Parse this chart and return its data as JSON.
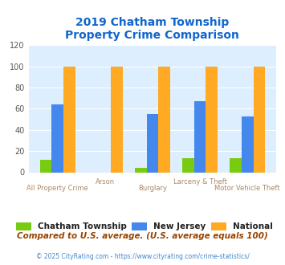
{
  "title": "2019 Chatham Township\nProperty Crime Comparison",
  "categories": [
    "All Property Crime",
    "Arson",
    "Burglary",
    "Larceny & Theft",
    "Motor Vehicle Theft"
  ],
  "series": {
    "Chatham Township": [
      12,
      0,
      4,
      13,
      13
    ],
    "New Jersey": [
      64,
      0,
      55,
      67,
      53
    ],
    "National": [
      100,
      100,
      100,
      100,
      100
    ]
  },
  "colors": {
    "Chatham Township": "#77cc11",
    "New Jersey": "#4488ee",
    "National": "#ffaa22"
  },
  "ylim": [
    0,
    120
  ],
  "yticks": [
    0,
    20,
    40,
    60,
    80,
    100,
    120
  ],
  "title_color": "#1166cc",
  "title_fontsize": 10,
  "plot_bg": "#ddeeff",
  "footnote1": "Compared to U.S. average. (U.S. average equals 100)",
  "footnote2": "© 2025 CityRating.com - https://www.cityrating.com/crime-statistics/",
  "footnote1_color": "#994400",
  "footnote2_color": "#4488cc",
  "xlabel_color": "#aa8866",
  "legend_text_color": "#222222"
}
